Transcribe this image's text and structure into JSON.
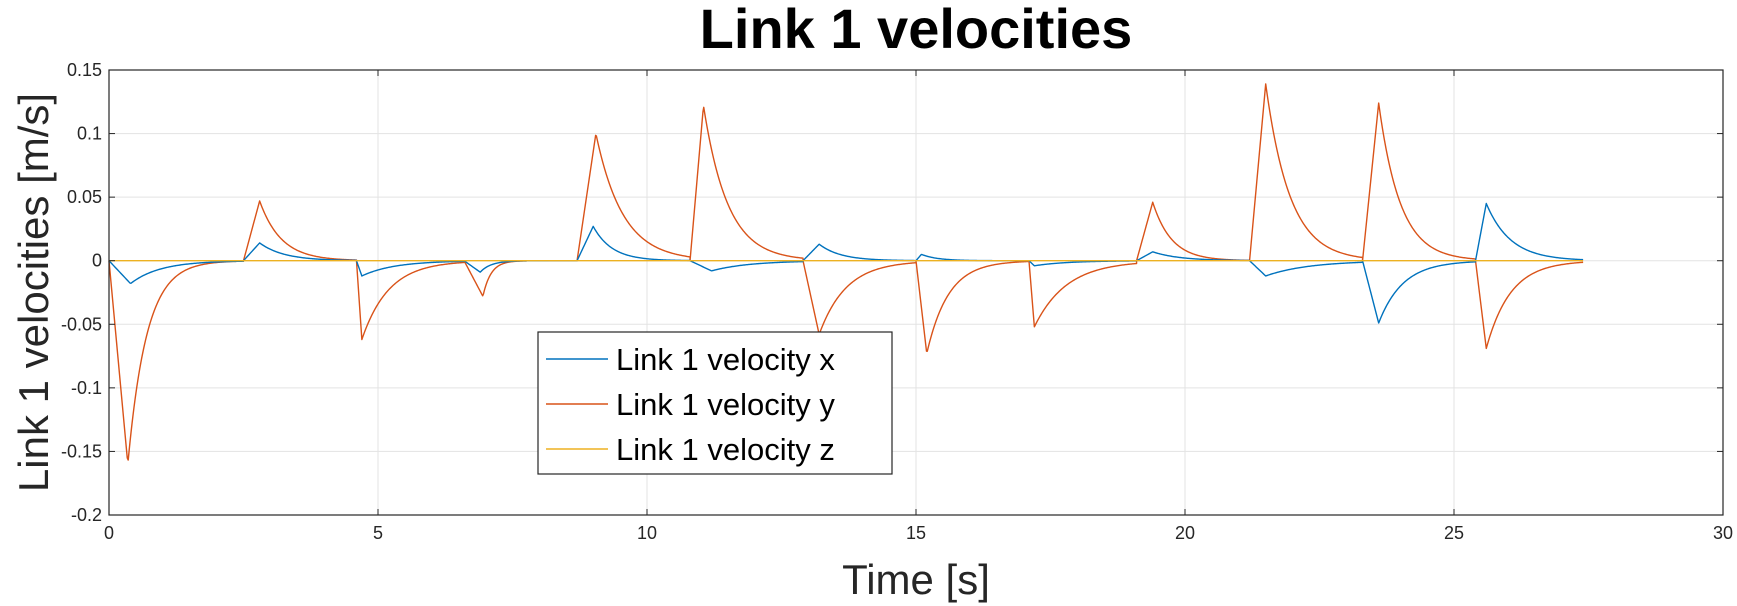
{
  "chart_data": {
    "type": "line",
    "title": "Link 1 velocities",
    "xlabel": "Time [s]",
    "ylabel": "Link 1 velocities [m/s]",
    "xlim": [
      0,
      30
    ],
    "ylim": [
      -0.2,
      0.15
    ],
    "xticks": [
      0,
      5,
      10,
      15,
      20,
      25,
      30
    ],
    "yticks": [
      -0.2,
      -0.15,
      -0.1,
      -0.05,
      0,
      0.05,
      0.1,
      0.15
    ],
    "grid": true,
    "legend_position": "lower-left-center",
    "series": [
      {
        "name": "Link 1 velocity x",
        "color": "#0072BD",
        "segments": [
          {
            "t0": 0.0,
            "t1": 2.5,
            "peak_t": 0.4,
            "peak": -0.018,
            "tau": 0.55
          },
          {
            "t0": 2.5,
            "t1": 4.6,
            "peak_t": 2.8,
            "peak": 0.014,
            "tau": 0.45
          },
          {
            "t0": 4.6,
            "t1": 6.6,
            "peak_t": 4.7,
            "peak": -0.012,
            "tau": 0.6
          },
          {
            "t0": 6.6,
            "t1": 8.7,
            "peak_t": 6.9,
            "peak": -0.009,
            "tau": 0.2
          },
          {
            "t0": 8.7,
            "t1": 10.8,
            "peak_t": 9.0,
            "peak": 0.027,
            "tau": 0.35
          },
          {
            "t0": 10.8,
            "t1": 12.9,
            "peak_t": 11.2,
            "peak": -0.008,
            "tau": 0.7
          },
          {
            "t0": 12.9,
            "t1": 15.0,
            "peak_t": 13.2,
            "peak": 0.013,
            "tau": 0.4
          },
          {
            "t0": 15.0,
            "t1": 17.1,
            "peak_t": 15.1,
            "peak": 0.005,
            "tau": 0.3
          },
          {
            "t0": 17.1,
            "t1": 19.1,
            "peak_t": 17.2,
            "peak": -0.004,
            "tau": 0.6
          },
          {
            "t0": 19.1,
            "t1": 21.2,
            "peak_t": 19.4,
            "peak": 0.007,
            "tau": 0.5
          },
          {
            "t0": 21.2,
            "t1": 23.3,
            "peak_t": 21.5,
            "peak": -0.012,
            "tau": 0.8
          },
          {
            "t0": 23.3,
            "t1": 25.4,
            "peak_t": 23.6,
            "peak": -0.049,
            "tau": 0.45
          },
          {
            "t0": 25.4,
            "t1": 27.4,
            "peak_t": 25.6,
            "peak": 0.045,
            "tau": 0.45
          }
        ]
      },
      {
        "name": "Link 1 velocity y",
        "color": "#D95319",
        "segments": [
          {
            "t0": 0.0,
            "t1": 2.5,
            "peak_t": 0.35,
            "peak": -0.16,
            "tau": 0.35
          },
          {
            "t0": 2.5,
            "t1": 4.6,
            "peak_t": 2.8,
            "peak": 0.047,
            "tau": 0.4
          },
          {
            "t0": 4.6,
            "t1": 6.6,
            "peak_t": 4.7,
            "peak": -0.062,
            "tau": 0.5
          },
          {
            "t0": 6.6,
            "t1": 8.7,
            "peak_t": 6.95,
            "peak": -0.028,
            "tau": 0.15
          },
          {
            "t0": 8.7,
            "t1": 10.8,
            "peak_t": 9.05,
            "peak": 0.1,
            "tau": 0.5
          },
          {
            "t0": 10.8,
            "t1": 12.9,
            "peak_t": 11.05,
            "peak": 0.122,
            "tau": 0.45
          },
          {
            "t0": 12.9,
            "t1": 15.0,
            "peak_t": 13.2,
            "peak": -0.058,
            "tau": 0.5
          },
          {
            "t0": 15.0,
            "t1": 17.1,
            "peak_t": 15.2,
            "peak": -0.073,
            "tau": 0.4
          },
          {
            "t0": 17.1,
            "t1": 19.1,
            "peak_t": 17.2,
            "peak": -0.052,
            "tau": 0.6
          },
          {
            "t0": 19.1,
            "t1": 21.2,
            "peak_t": 19.4,
            "peak": 0.046,
            "tau": 0.35
          },
          {
            "t0": 21.2,
            "t1": 23.3,
            "peak_t": 21.5,
            "peak": 0.139,
            "tau": 0.45
          },
          {
            "t0": 23.3,
            "t1": 25.4,
            "peak_t": 23.6,
            "peak": 0.124,
            "tau": 0.4
          },
          {
            "t0": 25.4,
            "t1": 27.4,
            "peak_t": 25.6,
            "peak": -0.069,
            "tau": 0.45
          }
        ]
      },
      {
        "name": "Link 1 velocity z",
        "color": "#EDB120",
        "segments": [
          {
            "t0": 0.0,
            "t1": 27.4,
            "peak_t": 0.0,
            "peak": 0.0,
            "tau": 1.0
          }
        ]
      }
    ]
  }
}
